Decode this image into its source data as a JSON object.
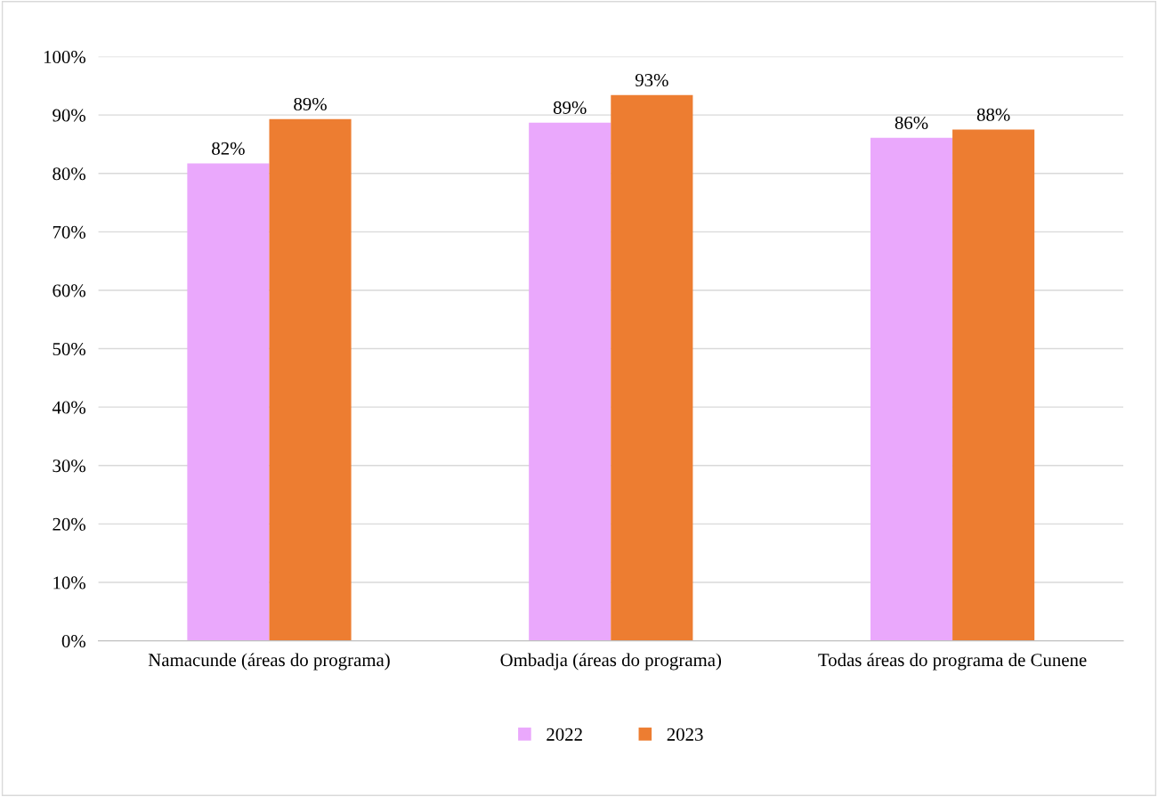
{
  "chart_data": {
    "type": "bar",
    "categories": [
      "Namacunde (áreas do programa)",
      "Ombadja (áreas do programa)",
      "Todas áreas do programa de Cunene"
    ],
    "series": [
      {
        "name": "2022",
        "color": "#eaa8fc",
        "values": [
          81.7,
          88.7,
          86.1
        ],
        "value_labels": [
          "82%",
          "89%",
          "86%"
        ]
      },
      {
        "name": "2023",
        "color": "#ed7d31",
        "values": [
          89.3,
          93.4,
          87.5
        ],
        "value_labels": [
          "89%",
          "93%",
          "88%"
        ]
      }
    ],
    "ylim": [
      0,
      100
    ],
    "yticks": [
      {
        "value": 0,
        "label": "0%"
      },
      {
        "value": 10,
        "label": "10%"
      },
      {
        "value": 20,
        "label": "20%"
      },
      {
        "value": 30,
        "label": "30%"
      },
      {
        "value": 40,
        "label": "40%"
      },
      {
        "value": 50,
        "label": "50%"
      },
      {
        "value": 60,
        "label": "60%"
      },
      {
        "value": 70,
        "label": "70%"
      },
      {
        "value": 80,
        "label": "80%"
      },
      {
        "value": 90,
        "label": "90%"
      },
      {
        "value": 100,
        "label": "100%"
      }
    ],
    "grid": "y",
    "legend": "bottom"
  }
}
